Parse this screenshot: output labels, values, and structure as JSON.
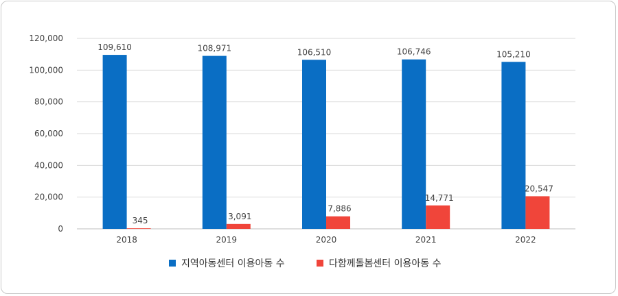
{
  "chart_data": {
    "type": "bar",
    "categories": [
      "2018",
      "2019",
      "2020",
      "2021",
      "2022"
    ],
    "series": [
      {
        "name": "지역아동센터 이용아동 수",
        "color": "#0a6ec4",
        "values": [
          109610,
          108971,
          106510,
          106746,
          105210
        ],
        "labels": [
          "109,610",
          "108,971",
          "106,510",
          "106,746",
          "105,210"
        ]
      },
      {
        "name": "다함께돌봄센터 이용아동 수",
        "color": "#f0453a",
        "values": [
          345,
          3091,
          7886,
          14771,
          20547
        ],
        "labels": [
          "345",
          "3,091",
          "7,886",
          "14,771",
          "20,547"
        ]
      }
    ],
    "ylim": [
      0,
      120000
    ],
    "yticks": [
      0,
      20000,
      40000,
      60000,
      80000,
      100000,
      120000
    ],
    "ytick_labels": [
      "0",
      "20,000",
      "40,000",
      "60,000",
      "80,000",
      "100,000",
      "120,000"
    ],
    "grid": true,
    "legend_position": "bottom",
    "title": "",
    "xlabel": "",
    "ylabel": ""
  }
}
